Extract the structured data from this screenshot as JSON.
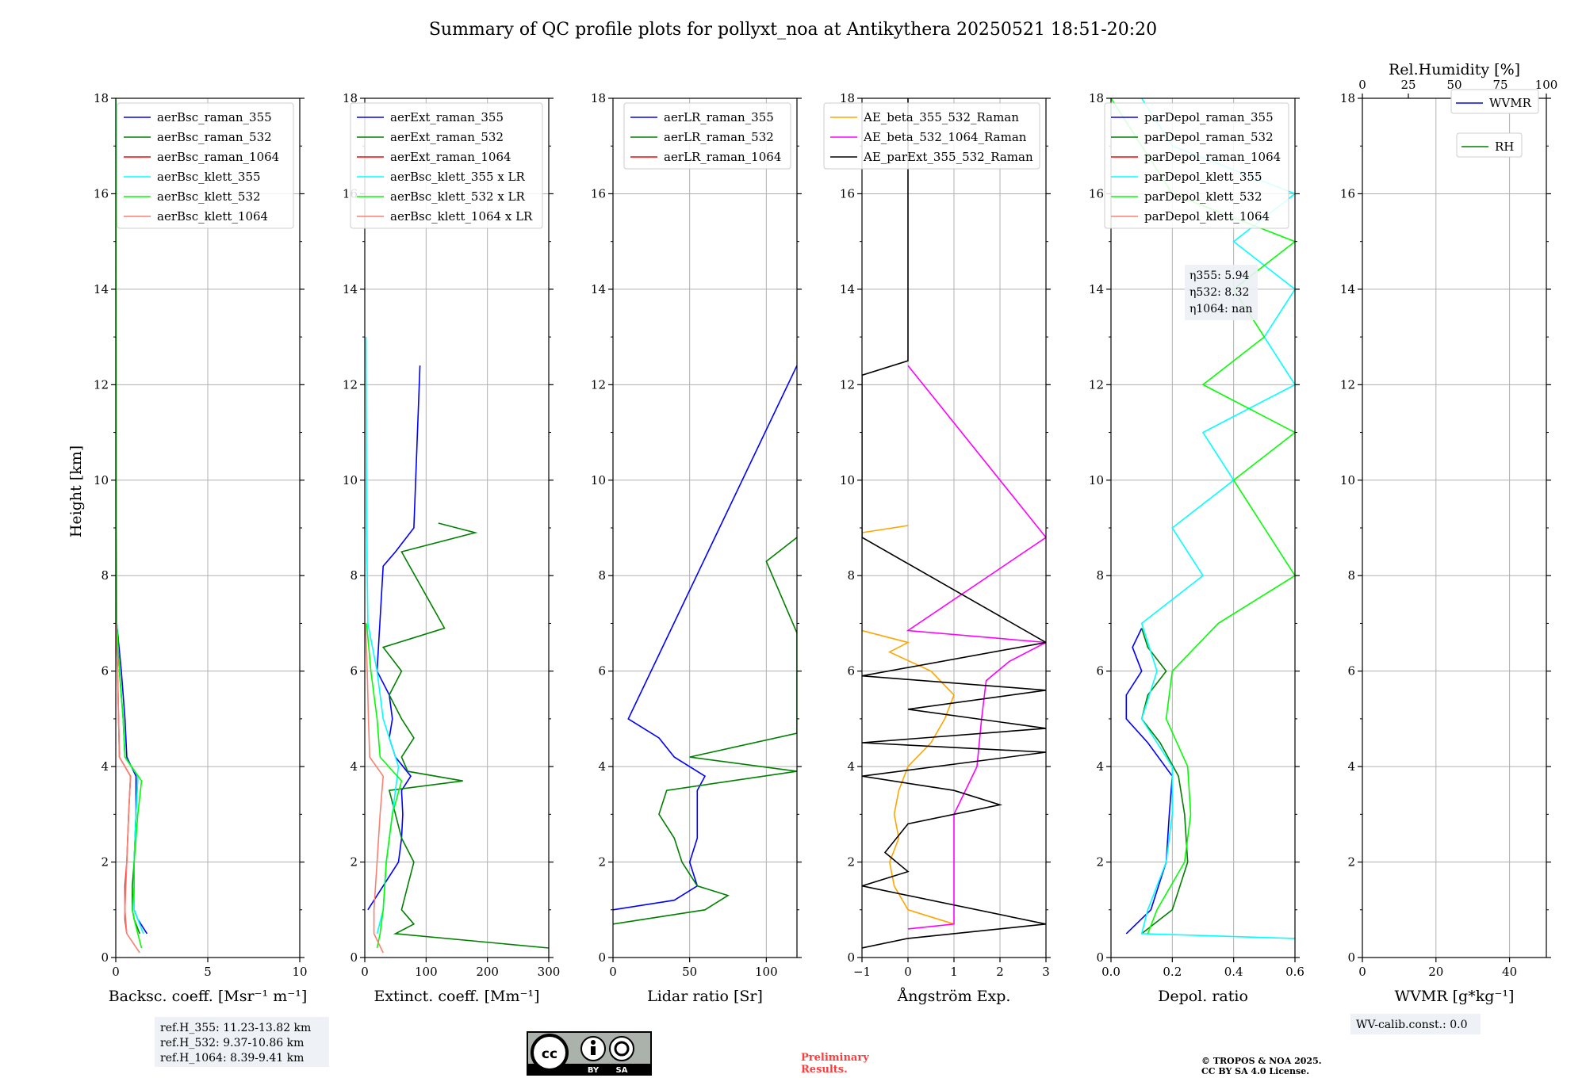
{
  "title": "Summary of QC profile plots for pollyxt_noa at Antikythera 20250521 18:51-20:20",
  "ylabel": "Height [km]",
  "ref_box": [
    "ref.H_355: 11.23-13.82 km",
    "ref.H_532: 9.37-10.86 km",
    "ref.H_1064: 8.39-9.41 km"
  ],
  "eta_box": [
    "η355: 5.94",
    "η532: 8.32",
    "η1064: nan"
  ],
  "wv_calib": "WV-calib.const.: 0.0",
  "cc_badge": {
    "by": "BY",
    "sa": "SA"
  },
  "preliminary": [
    "Preliminary",
    "Results."
  ],
  "copyright": [
    "© TROPOS & NOA 2025.",
    "CC BY SA 4.0 License."
  ],
  "chart_data": [
    {
      "type": "line",
      "xlabel": "Backsc. coeff. [Msr⁻¹ m⁻¹]",
      "xlim": [
        0,
        10
      ],
      "ylim": [
        0,
        18
      ],
      "xticks": [
        "0",
        "5",
        "10"
      ],
      "yticks": [
        "0",
        "2",
        "4",
        "6",
        "8",
        "10",
        "12",
        "14",
        "16",
        "18"
      ],
      "legend": "top-right",
      "series": [
        {
          "name": "aerBsc_raman_355",
          "color": "#0000ff",
          "y": [
            0.5,
            0.8,
            1,
            1.5,
            2,
            3,
            3.8,
            4.2,
            5,
            6,
            7
          ],
          "x": [
            1.7,
            1.2,
            1.0,
            1.0,
            1.0,
            1.1,
            1.1,
            0.6,
            0.5,
            0.3,
            0.05
          ]
        },
        {
          "name": "aerBsc_raman_532",
          "color": "#008000",
          "y": [
            0.5,
            0.8,
            1,
            1.5,
            2,
            3,
            3.8,
            4.2,
            5,
            6,
            7
          ],
          "x": [
            1.3,
            1.0,
            0.9,
            0.9,
            1.0,
            1.1,
            1.2,
            0.5,
            0.4,
            0.2,
            0.05
          ]
        },
        {
          "name": "aerBsc_raman_1064",
          "color": "#ff0000",
          "y": [
            0.5,
            0.8,
            1,
            1.5,
            2,
            3,
            3.8,
            4.2,
            5,
            6,
            7
          ],
          "x": [
            0.6,
            0.5,
            0.5,
            0.5,
            0.6,
            0.7,
            0.8,
            0.2,
            0.15,
            0.1,
            0.02
          ]
        },
        {
          "name": "aerBsc_klett_355",
          "color": "#00ffff",
          "y": [
            0.5,
            0.8,
            1,
            1.5,
            2,
            3,
            3.8,
            4.2,
            5,
            6,
            7,
            9,
            12,
            18
          ],
          "x": [
            1.5,
            1.2,
            1.0,
            1.0,
            1.0,
            1.1,
            1.2,
            0.5,
            0.4,
            0.2,
            0.05,
            0.03,
            0.02,
            0.0
          ]
        },
        {
          "name": "aerBsc_klett_532",
          "color": "#00ff00",
          "y": [
            0.2,
            0.5,
            0.8,
            1,
            1.5,
            2,
            3,
            3.7,
            4.2,
            5,
            6,
            7,
            9,
            12,
            18
          ],
          "x": [
            1.4,
            1.2,
            1.0,
            0.9,
            1.0,
            1.0,
            1.2,
            1.4,
            0.5,
            0.4,
            0.2,
            0.05,
            0.03,
            0.02,
            0.0
          ]
        },
        {
          "name": "aerBsc_klett_1064",
          "color": "#fa8072",
          "y": [
            0.1,
            0.5,
            1,
            2,
            3,
            3.8,
            4.2,
            5,
            6,
            7
          ],
          "x": [
            1.3,
            0.6,
            0.5,
            0.6,
            0.7,
            0.8,
            0.2,
            0.15,
            0.1,
            0.02
          ]
        }
      ]
    },
    {
      "type": "line",
      "xlabel": "Extinct. coeff. [Mm⁻¹]",
      "xlim": [
        0,
        300
      ],
      "ylim": [
        0,
        18
      ],
      "xticks": [
        "0",
        "100",
        "200",
        "300"
      ],
      "yticks": [
        "0",
        "2",
        "4",
        "6",
        "8",
        "10",
        "12",
        "14",
        "16",
        "18"
      ],
      "legend": "top-right",
      "series": [
        {
          "name": "aerExt_raman_355",
          "color": "#0000ff",
          "y": [
            1.0,
            1.5,
            2,
            2.5,
            3,
            3.5,
            3.8,
            4.2,
            4.6,
            5,
            5.5,
            6,
            8.2,
            8.5,
            9.0,
            12.4
          ],
          "x": [
            5,
            30,
            55,
            60,
            62,
            60,
            75,
            50,
            40,
            45,
            40,
            20,
            30,
            50,
            80,
            90
          ]
        },
        {
          "name": "aerExt_raman_532",
          "color": "#008000",
          "y": [
            0.2,
            0.5,
            0.7,
            1,
            1.5,
            2,
            2.5,
            3,
            3.5,
            3.7,
            3.9,
            4.2,
            4.6,
            5,
            5.5,
            6,
            6.5,
            6.9,
            8.5,
            8.9,
            9.1
          ],
          "x": [
            300,
            50,
            80,
            60,
            70,
            80,
            60,
            50,
            40,
            160,
            70,
            60,
            80,
            60,
            40,
            60,
            30,
            130,
            60,
            180,
            120
          ]
        },
        {
          "name": "aerExt_raman_1064",
          "color": "#ff0000",
          "y": [],
          "x": []
        },
        {
          "name": "aerBsc_klett_355 x LR",
          "color": "#00ffff",
          "y": [
            0.5,
            1,
            2,
            3,
            4,
            5,
            6,
            7,
            9,
            13
          ],
          "x": [
            20,
            30,
            35,
            45,
            55,
            30,
            20,
            5,
            3,
            2
          ]
        },
        {
          "name": "aerBsc_klett_532 x LR",
          "color": "#00ff00",
          "y": [
            0.2,
            0.5,
            1,
            2,
            3,
            3.7,
            4.2,
            5,
            6,
            7
          ],
          "x": [
            20,
            25,
            30,
            35,
            45,
            60,
            25,
            20,
            10,
            3
          ]
        },
        {
          "name": "aerBsc_klett_1064 x LR",
          "color": "#fa8072",
          "y": [
            0.1,
            0.5,
            1,
            2,
            3,
            3.8,
            4.2,
            5,
            6,
            7
          ],
          "x": [
            30,
            15,
            15,
            20,
            25,
            30,
            8,
            6,
            4,
            1
          ]
        }
      ]
    },
    {
      "type": "line",
      "xlabel": "Lidar ratio [Sr]",
      "xlim": [
        0,
        120
      ],
      "ylim": [
        0,
        18
      ],
      "xticks": [
        "0",
        "50",
        "100"
      ],
      "yticks": [
        "0",
        "2",
        "4",
        "6",
        "8",
        "10",
        "12",
        "14",
        "16",
        "18"
      ],
      "legend": "top-right",
      "series": [
        {
          "name": "aerLR_raman_355",
          "color": "#0000ff",
          "y": [
            1.0,
            1.2,
            1.5,
            2,
            2.5,
            3,
            3.5,
            3.8,
            4.2,
            4.6,
            5,
            12.4
          ],
          "x": [
            0,
            40,
            55,
            50,
            55,
            55,
            55,
            60,
            40,
            30,
            10,
            120
          ]
        },
        {
          "name": "aerLR_raman_532",
          "color": "#008000",
          "y": [
            0.7,
            1.0,
            1.3,
            1.5,
            2,
            2.5,
            3,
            3.5,
            3.9,
            4.2,
            4.7,
            5.5,
            6,
            6.8,
            8.3,
            8.8
          ],
          "x": [
            0,
            60,
            75,
            55,
            45,
            40,
            30,
            35,
            120,
            50,
            120,
            120,
            120,
            120,
            100,
            120
          ]
        },
        {
          "name": "aerLR_raman_1064",
          "color": "#ff0000",
          "y": [],
          "x": []
        }
      ]
    },
    {
      "type": "line",
      "xlabel": "Ångström Exp.",
      "xlim": [
        -1,
        3
      ],
      "ylim": [
        0,
        18
      ],
      "xticks": [
        "−1",
        "0",
        "1",
        "2",
        "3"
      ],
      "yticks": [
        "0",
        "2",
        "4",
        "6",
        "8",
        "10",
        "12",
        "14",
        "16",
        "18"
      ],
      "legend": "top-right",
      "series": [
        {
          "name": "AE_beta_355_532_Raman",
          "color": "#ffa500",
          "y": [
            0.7,
            1,
            1.5,
            2,
            2.5,
            3,
            3.5,
            4,
            4.5,
            5,
            5.5,
            6,
            6.4,
            6.6,
            6.85,
            8.9,
            9.05
          ],
          "x": [
            1,
            0,
            -0.3,
            -0.4,
            -0.2,
            -0.3,
            -0.2,
            0,
            0.5,
            0.8,
            1.0,
            0.5,
            -0.4,
            0,
            -1,
            -1,
            0
          ]
        },
        {
          "name": "AE_beta_532_1064_Raman",
          "color": "#ff00ff",
          "y": [
            0.6,
            0.7,
            1,
            2,
            3,
            4,
            5,
            5.8,
            6.2,
            6.6,
            6.85,
            8.8,
            12.4
          ],
          "x": [
            0,
            1,
            1.0,
            1.0,
            1.0,
            1.5,
            1.6,
            1.7,
            2.2,
            3.0,
            0,
            3,
            0
          ]
        },
        {
          "name": "AE_parExt_355_532_Raman",
          "color": "#000000",
          "y": [
            0.2,
            0.4,
            0.7,
            1.5,
            1.8,
            2.2,
            2.8,
            3.2,
            3.5,
            3.8,
            4.3,
            4.5,
            4.8,
            5.2,
            5.6,
            5.9,
            6.6,
            8.8,
            12.2,
            12.5,
            18
          ],
          "x": [
            -1,
            0,
            3,
            -1,
            0,
            -0.5,
            0,
            2,
            1,
            -1,
            3,
            -1,
            3,
            0,
            3,
            -1,
            3,
            -1,
            -1,
            0,
            0
          ]
        }
      ]
    },
    {
      "type": "line",
      "xlabel": "Depol. ratio",
      "xlim": [
        0,
        0.6
      ],
      "ylim": [
        0,
        18
      ],
      "xticks": [
        "0.0",
        "0.2",
        "0.4",
        "0.6"
      ],
      "yticks": [
        "0",
        "2",
        "4",
        "6",
        "8",
        "10",
        "12",
        "14",
        "16",
        "18"
      ],
      "legend": "top-right",
      "series": [
        {
          "name": "parDepol_raman_355",
          "color": "#0000ff",
          "y": [
            0.5,
            1,
            2,
            3,
            3.8,
            4.5,
            5,
            5.5,
            6,
            6.5,
            6.9
          ],
          "x": [
            0.05,
            0.13,
            0.18,
            0.19,
            0.2,
            0.12,
            0.05,
            0.05,
            0.1,
            0.07,
            0.1
          ]
        },
        {
          "name": "parDepol_raman_532",
          "color": "#008000",
          "y": [
            0.5,
            1,
            2,
            3,
            3.8,
            4.5,
            5,
            5.5,
            6,
            6.5,
            6.9
          ],
          "x": [
            0.1,
            0.2,
            0.25,
            0.24,
            0.22,
            0.16,
            0.1,
            0.12,
            0.18,
            0.12,
            0.1
          ]
        },
        {
          "name": "parDepol_raman_1064",
          "color": "#ff0000",
          "y": [],
          "x": []
        },
        {
          "name": "parDepol_klett_355",
          "color": "#00ffff",
          "y": [
            0.4,
            0.5,
            1,
            2,
            3,
            4,
            5,
            6,
            7,
            8,
            9,
            10,
            11,
            12,
            13,
            14,
            15,
            16,
            17,
            18
          ],
          "x": [
            0.6,
            0.1,
            0.12,
            0.18,
            0.2,
            0.2,
            0.1,
            0.15,
            0.1,
            0.3,
            0.2,
            0.4,
            0.3,
            0.6,
            0.5,
            0.6,
            0.4,
            0.6,
            0.2,
            0.1
          ]
        },
        {
          "name": "parDepol_klett_532",
          "color": "#00ff00",
          "y": [
            0.5,
            1,
            2,
            3,
            4,
            5,
            6,
            7,
            8,
            9,
            10,
            11,
            12,
            13,
            14,
            15,
            16,
            17,
            18
          ],
          "x": [
            0.12,
            0.15,
            0.24,
            0.26,
            0.25,
            0.18,
            0.2,
            0.35,
            0.6,
            0.5,
            0.4,
            0.6,
            0.3,
            0.5,
            0.4,
            0.6,
            0.2,
            0.1,
            0.0
          ]
        },
        {
          "name": "parDepol_klett_1064",
          "color": "#fa8072",
          "y": [],
          "x": []
        }
      ]
    },
    {
      "type": "line",
      "xlabel": "WVMR [g*kg⁻¹]",
      "top_xlabel": "Rel.Humidity [%]",
      "xlim": [
        0,
        50
      ],
      "ylim": [
        0,
        18
      ],
      "xticks": [
        "0",
        "20",
        "40"
      ],
      "top_xticks": [
        "0",
        "25",
        "50",
        "75",
        "100"
      ],
      "yticks": [
        "0",
        "2",
        "4",
        "6",
        "8",
        "10",
        "12",
        "14",
        "16",
        "18"
      ],
      "legend": "top-right",
      "series": [
        {
          "name": "WVMR",
          "color": "#0000ff",
          "y": [],
          "x": []
        },
        {
          "name": "RH",
          "color": "#008000",
          "y": [],
          "x": []
        }
      ]
    }
  ]
}
